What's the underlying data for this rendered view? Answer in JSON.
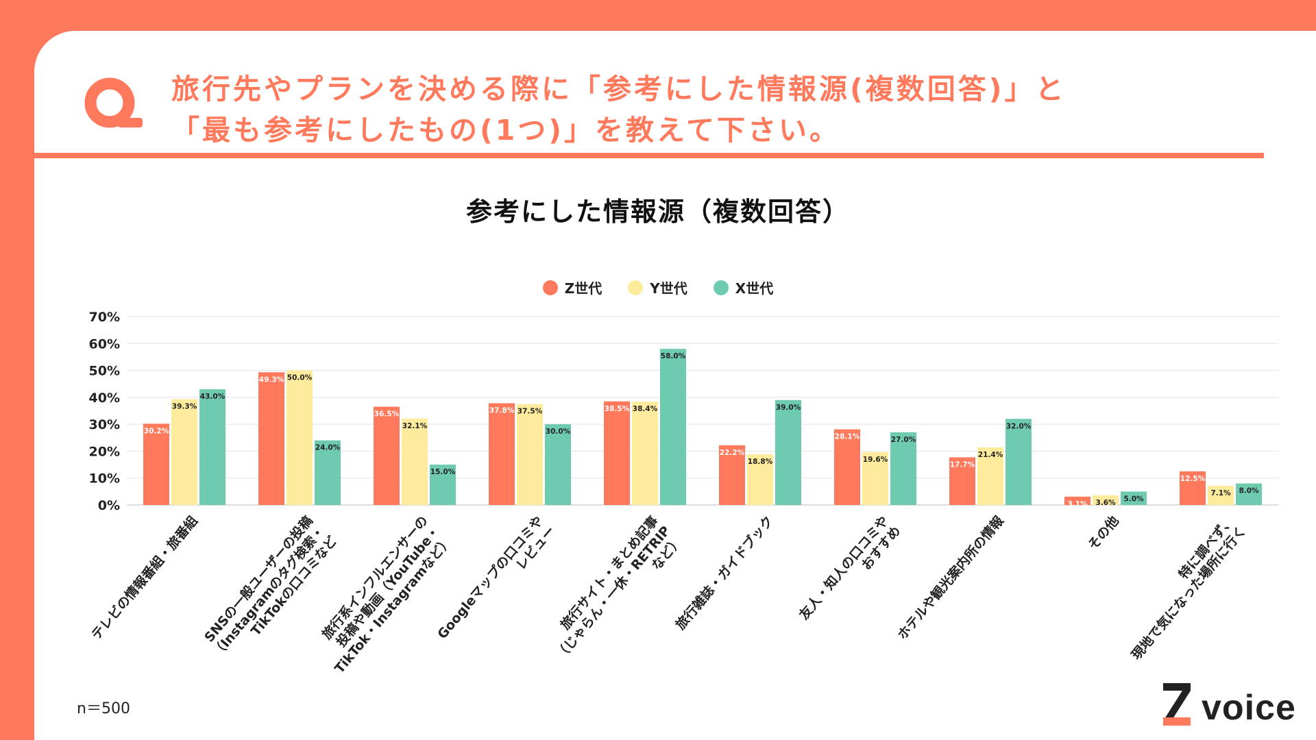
{
  "header": {
    "question_line1": "旅行先やプランを決める際に「参考にした情報源(複数回答)」と",
    "question_line2": "「最も参考にしたもの(1つ)」を教えて下さい。"
  },
  "footer": {
    "sample_size": "n＝500",
    "brand": "voice"
  },
  "colors": {
    "accent": "#FF7A5C",
    "z": "#FF7A5C",
    "y": "#FFEB9C",
    "x": "#6FCBB0"
  },
  "chart_data": {
    "type": "bar",
    "title": "参考にした情報源（複数回答）",
    "legend_position": "top-center",
    "ylim": [
      0,
      70
    ],
    "y_ticks": [
      "0%",
      "10%",
      "20%",
      "30%",
      "40%",
      "50%",
      "60%",
      "70%"
    ],
    "categories": [
      [
        "テレビの情報番組・旅番組"
      ],
      [
        "SNSの一般ユーザーの投稿",
        "（Instagramのタグ検索・",
        "TikTokの口コミなど"
      ],
      [
        "旅行系インフルエンサーの",
        "投稿や動画（YouTube・",
        "TikTok・Instagramなど）"
      ],
      [
        "Googleマップの口コミや",
        "レビュー"
      ],
      [
        "旅行サイト・まとめ記事",
        "（じゃらん・一休・RETRIP",
        "など）"
      ],
      [
        "旅行雑誌・ガイドブック"
      ],
      [
        "友人・知人の口コミや",
        "おすすめ"
      ],
      [
        "ホテルや観光案内所の情報"
      ],
      [
        "その他"
      ],
      [
        "特に調べず、",
        "現地で気になった場所に行く"
      ]
    ],
    "series": [
      {
        "name": "Z世代",
        "color": "#FF7A5C",
        "values": [
          30.2,
          49.3,
          36.5,
          37.8,
          38.5,
          22.2,
          28.1,
          17.7,
          3.1,
          12.5
        ],
        "labels": [
          "30.2%",
          "49.3%",
          "36.5%",
          "37.8%",
          "38.5%",
          "22.2%",
          "28.1%",
          "17.7%",
          "3.1%",
          "12.5%"
        ]
      },
      {
        "name": "Y世代",
        "color": "#FFEB9C",
        "values": [
          39.3,
          50.0,
          32.1,
          37.5,
          38.4,
          18.8,
          19.6,
          21.4,
          3.6,
          7.1
        ],
        "labels": [
          "39.3%",
          "50.0%",
          "32.1%",
          "37.5%",
          "38.4%",
          "18.8%",
          "19.6%",
          "21.4%",
          "3.6%",
          "7.1%"
        ]
      },
      {
        "name": "X世代",
        "color": "#6FCBB0",
        "values": [
          43.0,
          24.0,
          15.0,
          30.0,
          58.0,
          39.0,
          27.0,
          32.0,
          5.0,
          8.0
        ],
        "labels": [
          "43.0%",
          "24.0%",
          "15.0%",
          "30.0%",
          "58.0%",
          "39.0%",
          "27.0%",
          "32.0%",
          "5.0%",
          "8.0%"
        ]
      }
    ]
  }
}
